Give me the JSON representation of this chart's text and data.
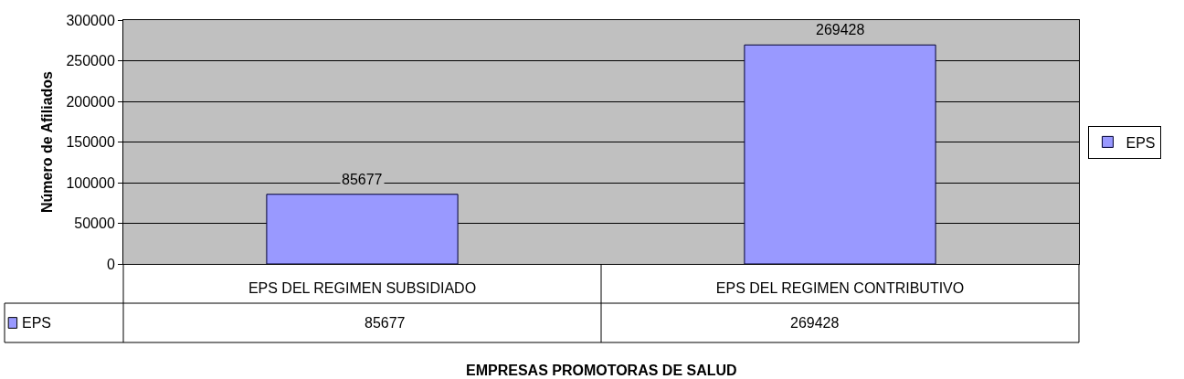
{
  "chart_data": {
    "type": "bar",
    "xlabel": "EMPRESAS PROMOTORAS DE SALUD",
    "ylabel": "Número de Afiliados",
    "categories": [
      "EPS DEL REGIMEN SUBSIDIADO",
      "EPS DEL REGIMEN CONTRIBUTIVO"
    ],
    "series": [
      {
        "name": "EPS",
        "color": "#9999ff",
        "values": [
          85677,
          269428
        ],
        "value_labels": [
          "85677",
          "269428"
        ]
      }
    ],
    "ylim": [
      0,
      300000
    ],
    "yticks": [
      0,
      50000,
      100000,
      150000,
      200000,
      250000,
      300000
    ],
    "annotations": [
      "85677",
      "269428"
    ],
    "grid": "y",
    "legend": "right"
  }
}
